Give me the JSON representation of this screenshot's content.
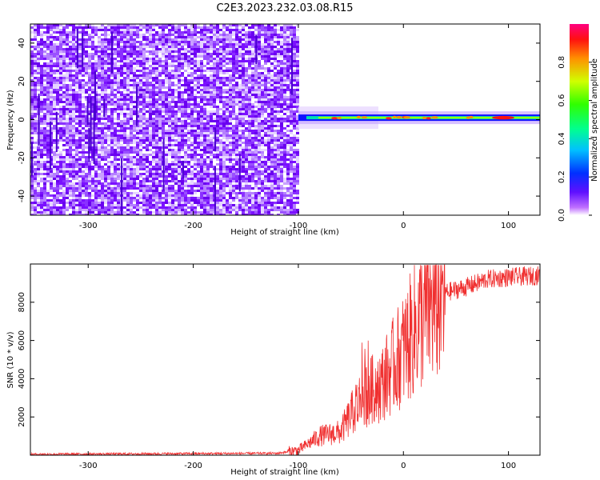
{
  "title": "C2E3.2023.232.03.08.R15",
  "colors": {
    "line": "#f03030",
    "spectrogram_noise": "#7a10ff",
    "axis": "#000000"
  },
  "chart_data": [
    {
      "type": "heatmap",
      "title": "C2E3.2023.232.03.08.R15",
      "xlabel": "Height of straight line (km)",
      "ylabel": "Frequency (Hz)",
      "xlim": [
        -355,
        130
      ],
      "ylim": [
        -50,
        50
      ],
      "xticks": [
        -300,
        -200,
        -100,
        0,
        100
      ],
      "yticks": [
        -40,
        -20,
        0,
        20,
        40
      ],
      "grid": false,
      "colorbar": {
        "label": "Normalized spectral amplitude",
        "range": [
          0,
          1
        ],
        "ticks": [
          "0.0",
          "0.2",
          "0.4",
          "0.6",
          "0.8"
        ],
        "colormap": "rainbow (violet to red)"
      },
      "regions": [
        {
          "x_range": [
            -355,
            -100
          ],
          "freq_range": [
            -50,
            50
          ],
          "description": "broadband noise",
          "amplitude": 0.05
        },
        {
          "x_range": [
            -100,
            130
          ],
          "freq_center": 1,
          "description": "narrow carrier line",
          "amplitude": 0.9
        }
      ]
    },
    {
      "type": "line",
      "xlabel": "Height of straight line (km)",
      "ylabel": "SNR (10 * v/v)",
      "xlim": [
        -355,
        130
      ],
      "ylim": [
        0,
        10000
      ],
      "xticks": [
        -300,
        -200,
        -100,
        0,
        100
      ],
      "yticks": [
        2000,
        4000,
        6000,
        8000
      ],
      "grid": false,
      "trend": [
        {
          "x": -355,
          "y": 50
        },
        {
          "x": -120,
          "y": 100
        },
        {
          "x": -100,
          "y": 250
        },
        {
          "x": -80,
          "y": 1000
        },
        {
          "x": -60,
          "y": 1200
        },
        {
          "x": -40,
          "y": 3000
        },
        {
          "x": -20,
          "y": 3800
        },
        {
          "x": 0,
          "y": 5500
        },
        {
          "x": 20,
          "y": 7500
        },
        {
          "x": 40,
          "y": 8500
        },
        {
          "x": 60,
          "y": 8800
        },
        {
          "x": 80,
          "y": 9200
        },
        {
          "x": 100,
          "y": 9300
        },
        {
          "x": 130,
          "y": 9400
        }
      ]
    }
  ]
}
